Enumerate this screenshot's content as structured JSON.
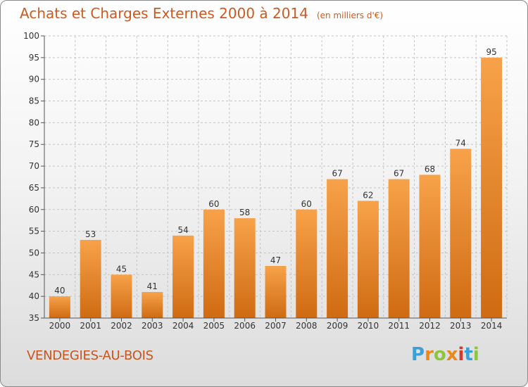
{
  "header": {
    "title": "Achats et Charges Externes 2000 à 2014",
    "unit": "(en milliers d'€)"
  },
  "footer": {
    "commune": "VENDEGIES-AU-BOIS",
    "logo_text": "Proxiti"
  },
  "colors": {
    "accent": "#cc5a20",
    "bar_top": "#f7a24a",
    "bar_bottom": "#cf6b12",
    "logo": [
      "#3aa0d8",
      "#e8891e",
      "#8cc63e",
      "#e8891e",
      "#d9372a",
      "#3aa0d8",
      "#8cc63e"
    ]
  },
  "chart_data": {
    "type": "bar",
    "title": "Achats et Charges Externes 2000 à 2014",
    "subtitle": "(en milliers d'€)",
    "categories": [
      "2000",
      "2001",
      "2002",
      "2003",
      "2004",
      "2005",
      "2006",
      "2007",
      "2008",
      "2009",
      "2010",
      "2011",
      "2012",
      "2013",
      "2014"
    ],
    "values": [
      40,
      53,
      45,
      41,
      54,
      60,
      58,
      47,
      60,
      67,
      62,
      67,
      68,
      74,
      95
    ],
    "ylim": [
      35,
      100
    ],
    "yticks": [
      35,
      40,
      45,
      50,
      55,
      60,
      65,
      70,
      75,
      80,
      85,
      90,
      95,
      100
    ],
    "grid": true,
    "data_labels": true
  }
}
